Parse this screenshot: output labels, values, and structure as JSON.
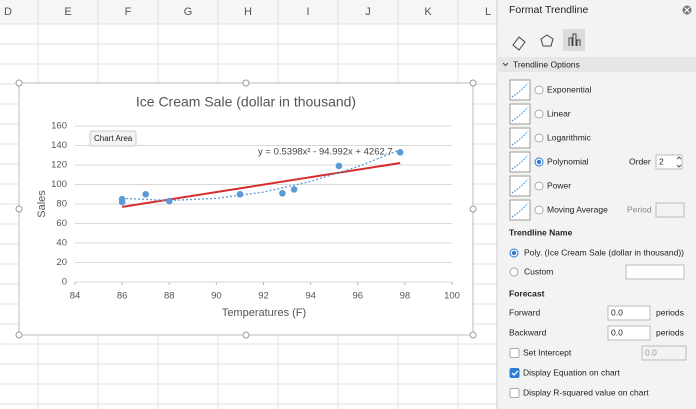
{
  "sheet": {
    "columns": [
      "D",
      "E",
      "F",
      "G",
      "H",
      "I",
      "J",
      "K",
      "L"
    ]
  },
  "tooltip": "Chart Area",
  "chart_data": {
    "type": "scatter",
    "title": "Ice Cream Sale (dollar in thousand)",
    "x_label": "Temperatures (F)",
    "y_label": "Sales",
    "xlim": [
      84,
      100
    ],
    "xticks": [
      84,
      86,
      88,
      90,
      92,
      94,
      96,
      98,
      100
    ],
    "ylim": [
      0,
      160
    ],
    "yticks": [
      0,
      20,
      40,
      60,
      80,
      100,
      120,
      140,
      160
    ],
    "grid": true,
    "series": [
      {
        "color": "#5b9bd5",
        "x": [
          86,
          86,
          87,
          88,
          91,
          92.8,
          93.3,
          95.2,
          97.8
        ],
        "values": [
          82,
          85,
          90,
          83,
          90,
          91,
          95,
          119,
          133
        ]
      }
    ],
    "trendlines": [
      {
        "color": "#d62c2c",
        "style": "solid",
        "x": [
          86,
          97.8
        ],
        "values": [
          77,
          122
        ]
      },
      {
        "color": "#5b9bd5",
        "style": "dotted",
        "x": [
          86,
          88,
          90,
          92,
          94,
          96,
          97.8
        ],
        "values": [
          85.8,
          83.6,
          85.8,
          92.2,
          103.1,
          118.3,
          135.6
        ]
      }
    ],
    "annotations": [
      "y = 0.5398x² - 94.992x + 4262.7"
    ]
  },
  "pane": {
    "title": "Format Trendline",
    "section": "Trendline Options",
    "types": [
      {
        "label": "Exponential",
        "selected": false
      },
      {
        "label": "Linear",
        "selected": false
      },
      {
        "label": "Logarithmic",
        "selected": false
      },
      {
        "label": "Polynomial",
        "selected": true
      },
      {
        "label": "Power",
        "selected": false
      },
      {
        "label": "Moving Average",
        "selected": false
      }
    ],
    "order_label": "Order",
    "order": 2,
    "period_label": "Period",
    "name_heading": "Trendline Name",
    "name_options": [
      {
        "label": "Poly. (Ice Cream Sale (dollar in thousand))",
        "selected": true
      },
      {
        "label": "Custom",
        "selected": false
      }
    ],
    "forecast_heading": "Forecast",
    "forecast": [
      {
        "label": "Forward",
        "value": "0.0",
        "unit": "periods"
      },
      {
        "label": "Backward",
        "value": "0.0",
        "unit": "periods"
      }
    ],
    "checkboxes": [
      {
        "label": "Set Intercept",
        "checked": false,
        "value": "0.0"
      },
      {
        "label": "Display Equation on chart",
        "checked": true
      },
      {
        "label": "Display R-squared value on chart",
        "checked": false
      }
    ]
  }
}
